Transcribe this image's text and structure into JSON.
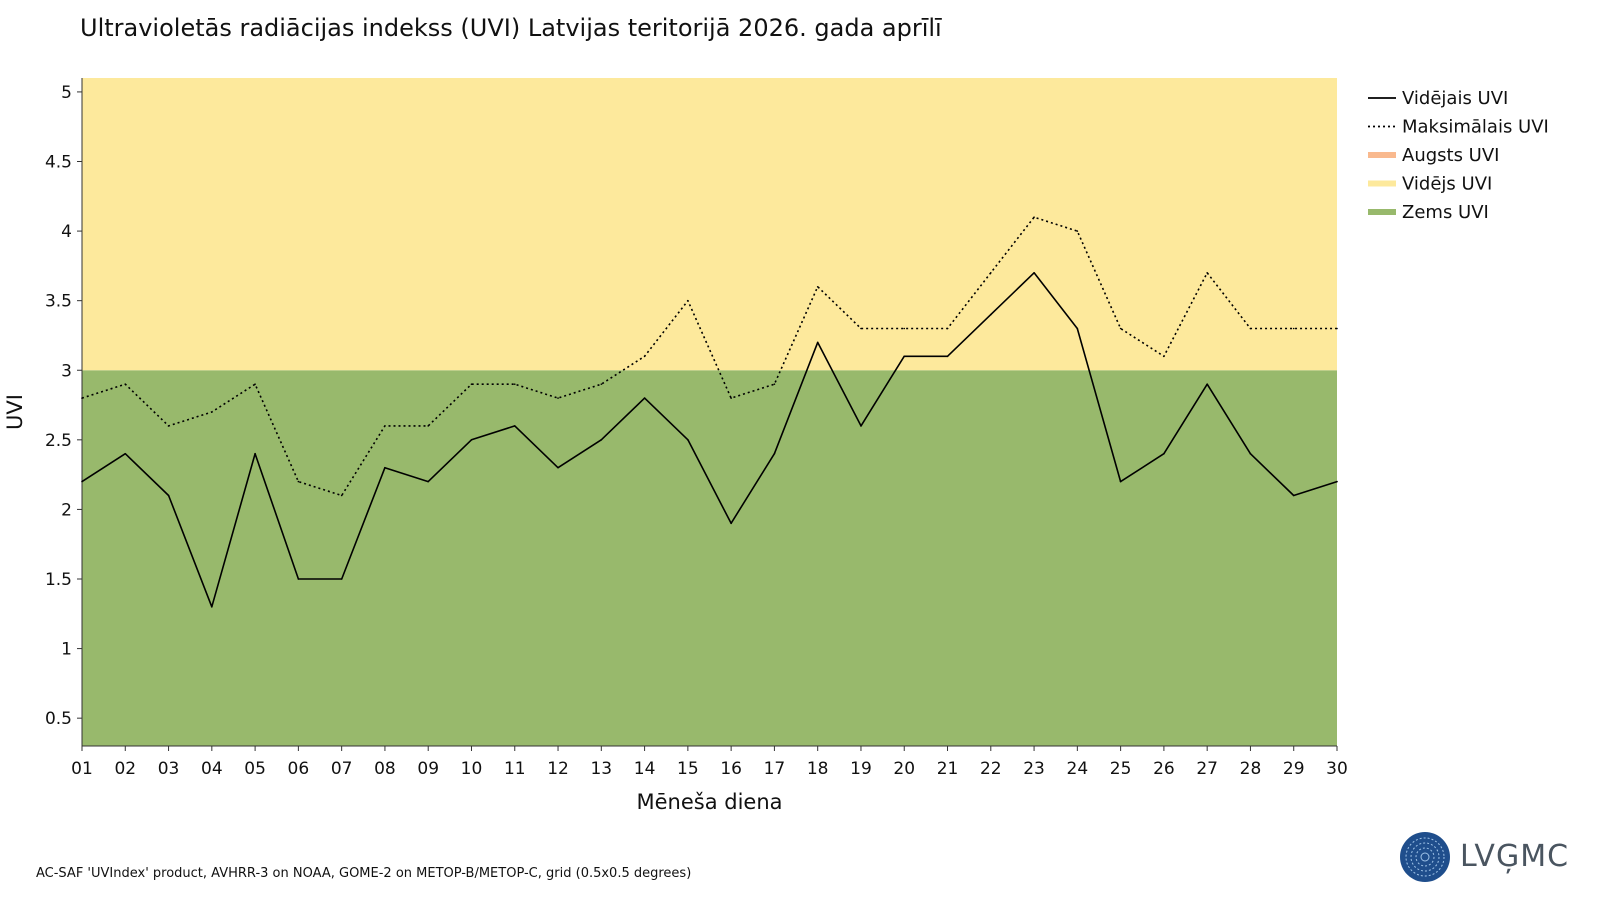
{
  "title": "Ultravioletās radiācijas indekss (UVI) Latvijas teritorijā 2026. gada aprīlī",
  "footer": "AC-SAF 'UVIndex' product, AVHRR-3 on NOAA, GOME-2 on METOP-B/METOP-C, grid (0.5x0.5 degrees)",
  "logo_text": "LVĢMC",
  "colors": {
    "low": "#98b96c",
    "moderate": "#fde99c",
    "high": "#f9b98e",
    "line": "#000000"
  },
  "chart_data": {
    "type": "line",
    "xlabel": "Mēneša diena",
    "ylabel": "UVI",
    "ylim": [
      0.3,
      5.1
    ],
    "yticks": [
      0.5,
      1,
      1.5,
      2,
      2.5,
      3,
      3.5,
      4,
      4.5,
      5
    ],
    "ytick_labels": [
      "0.5",
      "1",
      "1.5",
      "2",
      "2.5",
      "3",
      "3.5",
      "4",
      "4.5",
      "5"
    ],
    "categories": [
      "01",
      "02",
      "03",
      "04",
      "05",
      "06",
      "07",
      "08",
      "09",
      "10",
      "11",
      "12",
      "13",
      "14",
      "15",
      "16",
      "17",
      "18",
      "19",
      "20",
      "21",
      "22",
      "23",
      "24",
      "25",
      "26",
      "27",
      "28",
      "29",
      "30"
    ],
    "bands": [
      {
        "name": "Zems UVI",
        "from": 0.3,
        "to": 3,
        "color": "#98b96c"
      },
      {
        "name": "Vidējs UVI",
        "from": 3,
        "to": 5.1,
        "color": "#fde99c"
      }
    ],
    "series": [
      {
        "name": "Vidējais UVI",
        "style": "solid",
        "values": [
          2.2,
          2.4,
          2.1,
          1.3,
          2.4,
          1.5,
          1.5,
          2.3,
          2.2,
          2.5,
          2.6,
          2.3,
          2.5,
          2.8,
          2.5,
          1.9,
          2.4,
          3.2,
          2.6,
          3.1,
          3.1,
          3.4,
          3.7,
          3.3,
          2.2,
          2.4,
          2.9,
          2.4,
          2.1,
          2.2
        ]
      },
      {
        "name": "Maksimālais UVI",
        "style": "dotted",
        "values": [
          2.8,
          2.9,
          2.6,
          2.7,
          2.9,
          2.2,
          2.1,
          2.6,
          2.6,
          2.9,
          2.9,
          2.8,
          2.9,
          3.1,
          3.5,
          2.8,
          2.9,
          3.6,
          3.3,
          3.3,
          3.3,
          3.7,
          4.1,
          4.0,
          3.3,
          3.1,
          3.7,
          3.3,
          3.3,
          3.3
        ]
      }
    ],
    "legend": {
      "position": "right",
      "items": [
        {
          "label": "Vidējais UVI",
          "kind": "line-solid",
          "color": "#000000"
        },
        {
          "label": "Maksimālais UVI",
          "kind": "line-dotted",
          "color": "#000000"
        },
        {
          "label": "Augsts UVI",
          "kind": "band",
          "color": "#f9b98e"
        },
        {
          "label": "Vidējs UVI",
          "kind": "band",
          "color": "#fde99c"
        },
        {
          "label": "Zems UVI",
          "kind": "band",
          "color": "#98b96c"
        }
      ]
    }
  }
}
